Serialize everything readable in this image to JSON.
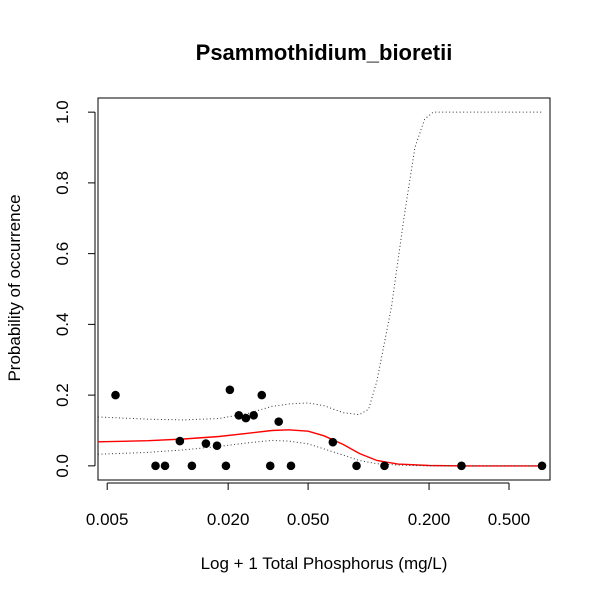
{
  "chart_data": {
    "type": "scatter",
    "title": "Psammothidium_bioretii",
    "xlabel": "Log + 1 Total Phosphorus (mg/L)",
    "ylabel": "Probability of occurrence",
    "x_scale": "log",
    "xlim": [
      0.0045,
      0.8
    ],
    "ylim": [
      -0.04,
      1.04
    ],
    "x_ticks": [
      {
        "value": 0.005,
        "label": "0.005"
      },
      {
        "value": 0.02,
        "label": "0.020"
      },
      {
        "value": 0.05,
        "label": "0.050"
      },
      {
        "value": 0.2,
        "label": "0.200"
      },
      {
        "value": 0.5,
        "label": "0.500"
      }
    ],
    "y_ticks": [
      {
        "value": 0.0,
        "label": "0.0"
      },
      {
        "value": 0.2,
        "label": "0.2"
      },
      {
        "value": 0.4,
        "label": "0.4"
      },
      {
        "value": 0.6,
        "label": "0.6"
      },
      {
        "value": 0.8,
        "label": "0.8"
      },
      {
        "value": 1.0,
        "label": "1.0"
      }
    ],
    "grid": false,
    "points": {
      "color": "#000000",
      "x": [
        0.0055,
        0.0087,
        0.0097,
        0.0115,
        0.0132,
        0.0155,
        0.0176,
        0.0195,
        0.0204,
        0.0226,
        0.0245,
        0.0268,
        0.0294,
        0.0324,
        0.0357,
        0.0411,
        0.0664,
        0.0871,
        0.12,
        0.29,
        0.73
      ],
      "y": [
        0.2,
        0.0,
        0.0,
        0.07,
        0.0,
        0.063,
        0.057,
        0.0,
        0.215,
        0.143,
        0.135,
        0.143,
        0.2,
        0.0,
        0.125,
        0.0,
        0.067,
        0.0,
        0.0,
        0.0,
        0.0
      ]
    },
    "series": [
      {
        "style": "solid",
        "color": "#ff0000",
        "x": [
          0.0045,
          0.008,
          0.012,
          0.018,
          0.025,
          0.033,
          0.04,
          0.05,
          0.06,
          0.075,
          0.09,
          0.11,
          0.14,
          0.2,
          0.3,
          0.5,
          0.73
        ],
        "y": [
          0.068,
          0.071,
          0.076,
          0.083,
          0.092,
          0.1,
          0.102,
          0.098,
          0.085,
          0.06,
          0.035,
          0.015,
          0.005,
          0.001,
          0.0,
          0.0,
          0.0
        ]
      },
      {
        "style": "dotted",
        "color": "#333333",
        "x": [
          0.0045,
          0.008,
          0.012,
          0.018,
          0.025,
          0.033,
          0.04,
          0.05,
          0.06,
          0.075,
          0.09,
          0.1,
          0.11,
          0.13,
          0.15,
          0.17,
          0.19,
          0.21,
          0.24,
          0.3,
          0.73
        ],
        "y": [
          0.138,
          0.132,
          0.13,
          0.134,
          0.148,
          0.168,
          0.175,
          0.178,
          0.17,
          0.15,
          0.145,
          0.16,
          0.24,
          0.45,
          0.7,
          0.9,
          0.98,
          1.0,
          1.0,
          1.0,
          1.0
        ]
      },
      {
        "style": "dotted",
        "color": "#333333",
        "x": [
          0.0045,
          0.008,
          0.012,
          0.018,
          0.025,
          0.033,
          0.04,
          0.05,
          0.06,
          0.075,
          0.09,
          0.11,
          0.14,
          0.2,
          0.3,
          0.5,
          0.73
        ],
        "y": [
          0.033,
          0.038,
          0.045,
          0.055,
          0.065,
          0.072,
          0.07,
          0.062,
          0.048,
          0.03,
          0.015,
          0.006,
          0.002,
          0.0,
          0.0,
          0.0,
          0.0
        ]
      }
    ]
  }
}
